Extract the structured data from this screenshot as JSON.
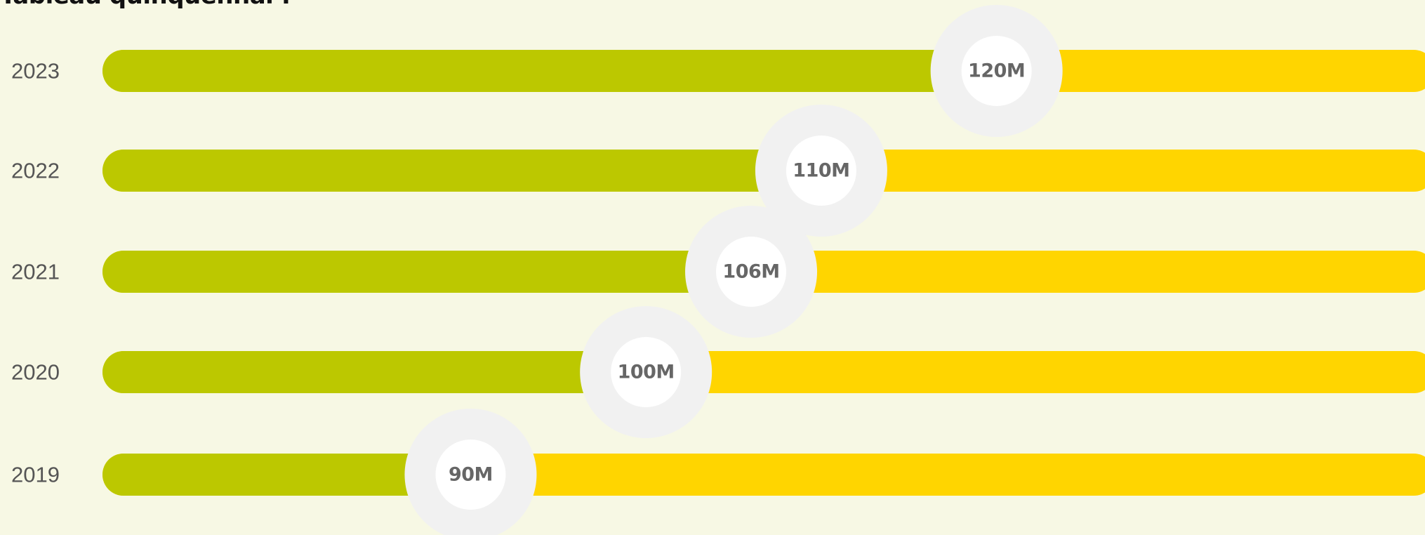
{
  "chart_data": {
    "type": "bar",
    "title": "Tableau quinquennal :",
    "categories": [
      "2023",
      "2022",
      "2021",
      "2020",
      "2019"
    ],
    "values": [
      120,
      110,
      106,
      100,
      90
    ],
    "value_labels": [
      "120M",
      "110M",
      "106M",
      "100M",
      "90M"
    ],
    "xlim": [
      69,
      145
    ],
    "grid": false,
    "legend": "none",
    "colors": {
      "filled": "#bcc800",
      "remaining": "#ffd500",
      "knob_outer": "#f1f1f1",
      "knob_inner": "#ffffff",
      "background": "#f7f8e4"
    }
  }
}
